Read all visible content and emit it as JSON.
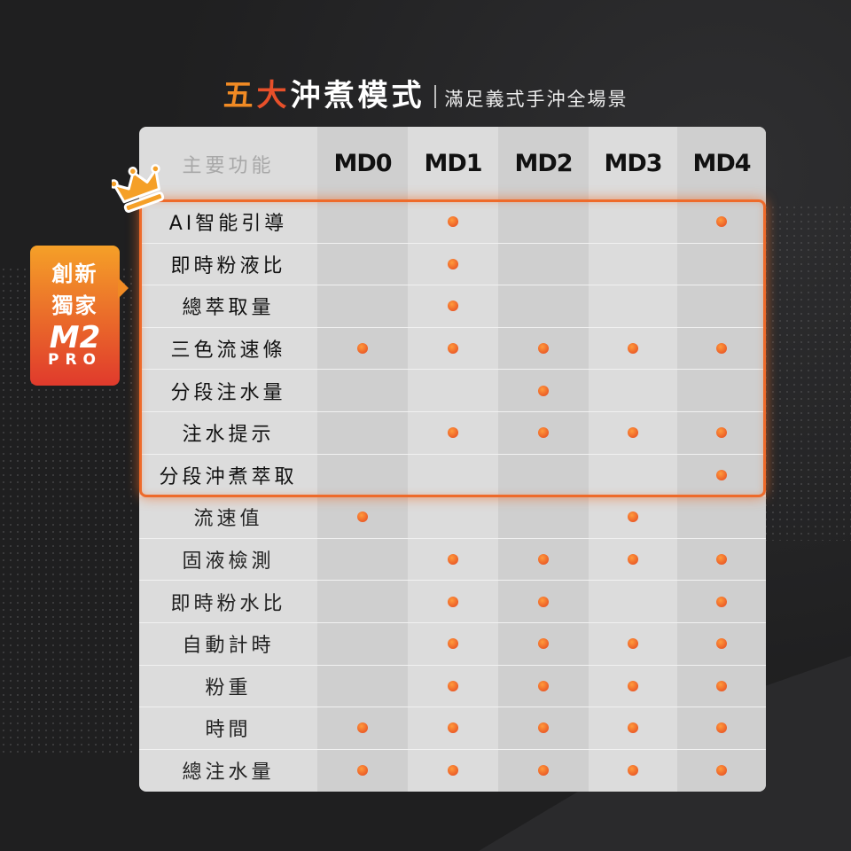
{
  "title": {
    "part1": "五",
    "part2": "大",
    "part3": "沖煮模式",
    "subtitle": "滿足義式手沖全場景"
  },
  "badge": {
    "line1": "創新",
    "line2": "獨家",
    "logo": "M2",
    "logo_sub": "PRO"
  },
  "table": {
    "header_feature": "主要功能",
    "modes": [
      "MD0",
      "MD1",
      "MD2",
      "MD3",
      "MD4"
    ],
    "highlight_rows": 7,
    "rows": [
      {
        "label": "AI智能引導",
        "marks": [
          0,
          1,
          0,
          0,
          1
        ]
      },
      {
        "label": "即時粉液比",
        "marks": [
          0,
          1,
          0,
          0,
          0
        ]
      },
      {
        "label": "總萃取量",
        "marks": [
          0,
          1,
          0,
          0,
          0
        ]
      },
      {
        "label": "三色流速條",
        "marks": [
          1,
          1,
          1,
          1,
          1
        ]
      },
      {
        "label": "分段注水量",
        "marks": [
          0,
          0,
          1,
          0,
          0
        ]
      },
      {
        "label": "注水提示",
        "marks": [
          0,
          1,
          1,
          1,
          1
        ]
      },
      {
        "label": "分段沖煮萃取",
        "marks": [
          0,
          0,
          0,
          0,
          1
        ]
      },
      {
        "label": "流速值",
        "marks": [
          1,
          0,
          0,
          1,
          0
        ]
      },
      {
        "label": "固液檢測",
        "marks": [
          0,
          1,
          1,
          1,
          1
        ]
      },
      {
        "label": "即時粉水比",
        "marks": [
          0,
          1,
          1,
          0,
          1
        ]
      },
      {
        "label": "自動計時",
        "marks": [
          0,
          1,
          1,
          1,
          1
        ]
      },
      {
        "label": "粉重",
        "marks": [
          0,
          1,
          1,
          1,
          1
        ]
      },
      {
        "label": "時間",
        "marks": [
          1,
          1,
          1,
          1,
          1
        ]
      },
      {
        "label": "總注水量",
        "marks": [
          1,
          1,
          1,
          1,
          1
        ]
      }
    ]
  },
  "colors": {
    "accent": "#ee6a2a",
    "dot": "#e4451f",
    "title_orange": "#f08a24",
    "title_red": "#e8502a"
  },
  "icons": {
    "crown": "crown-icon"
  }
}
